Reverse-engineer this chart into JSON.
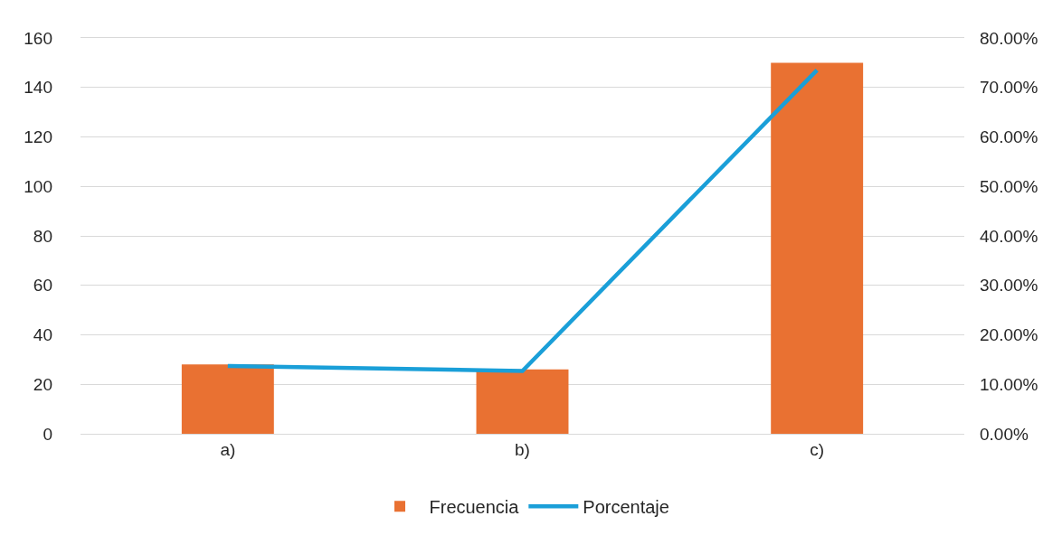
{
  "chart_data": {
    "type": "bar",
    "categories": [
      "a)",
      "b)",
      "c)"
    ],
    "series": [
      {
        "name": "Frecuencia",
        "color": "#e97132",
        "values": [
          28,
          26,
          150
        ]
      },
      {
        "name": "Porcentaje",
        "type": "line",
        "axis": "y2",
        "color": "#1a9fd8",
        "values": [
          13.7,
          12.7,
          73.5
        ],
        "marker": "none",
        "line_style": "solid"
      }
    ],
    "ylim": [
      0,
      160
    ],
    "yticks": [
      0,
      20,
      40,
      60,
      80,
      100,
      120,
      140,
      160
    ],
    "y2lim": [
      0,
      80
    ],
    "y2ticks": [
      {
        "value": 0,
        "label": "0.00%"
      },
      {
        "value": 10,
        "label": "10.00%"
      },
      {
        "value": 20,
        "label": "20.00%"
      },
      {
        "value": 30,
        "label": "30.00%"
      },
      {
        "value": 40,
        "label": "40.00%"
      },
      {
        "value": 50,
        "label": "50.00%"
      },
      {
        "value": 60,
        "label": "60.00%"
      },
      {
        "value": 70,
        "label": "70.00%"
      },
      {
        "value": 80,
        "label": "80.00%"
      }
    ],
    "grid": "y",
    "legend": "bottom"
  }
}
